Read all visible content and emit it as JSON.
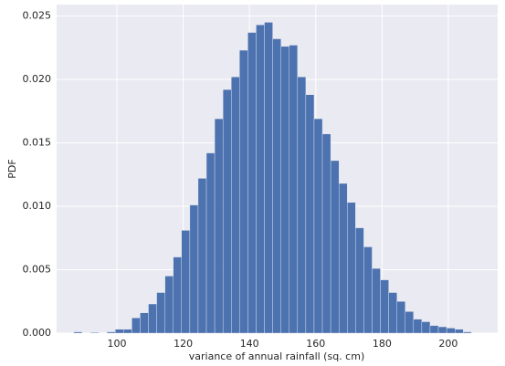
{
  "chart_data": {
    "type": "histogram",
    "xlabel": "variance of annual rainfall (sq. cm)",
    "ylabel": "PDF",
    "bins": [
      87,
      89.5,
      92,
      94.5,
      97,
      99.5,
      102,
      104.5,
      107,
      109.5,
      112,
      114.5,
      117,
      119.5,
      122,
      124.5,
      127,
      129.5,
      132,
      134.5,
      137,
      139.5,
      142,
      144.5,
      147,
      149.5,
      152,
      154.5,
      157,
      159.5,
      162,
      164.5,
      167,
      169.5,
      172,
      174.5,
      177,
      179.5,
      182,
      184.5,
      187,
      189.5,
      192,
      194.5,
      197,
      199.5,
      202,
      204.5,
      207
    ],
    "values": [
      0.0001,
      0,
      5e-05,
      0,
      0.0001,
      0.0003,
      0.0003,
      0.0012,
      0.0016,
      0.0023,
      0.0032,
      0.0045,
      0.006,
      0.0081,
      0.0101,
      0.0122,
      0.0142,
      0.0169,
      0.0192,
      0.0202,
      0.0223,
      0.0237,
      0.0243,
      0.0245,
      0.0232,
      0.0226,
      0.0227,
      0.0202,
      0.0188,
      0.0169,
      0.0157,
      0.0136,
      0.0118,
      0.0103,
      0.0083,
      0.0068,
      0.0051,
      0.0042,
      0.0032,
      0.0025,
      0.0017,
      0.0011,
      0.0009,
      0.0006,
      0.0005,
      0.0004,
      0.0003,
      0.0001
    ],
    "color": "#4c72b0",
    "background": "#eaeaf2",
    "grid": true,
    "xlim": [
      81.8,
      214.9
    ],
    "ylim": [
      0,
      0.0259
    ],
    "xticks": [
      100,
      120,
      140,
      160,
      180,
      200
    ],
    "yticks": [
      {
        "value": 0,
        "label": "0.000"
      },
      {
        "value": 0.005,
        "label": "0.005"
      },
      {
        "value": 0.01,
        "label": "0.010"
      },
      {
        "value": 0.015,
        "label": "0.015"
      },
      {
        "value": 0.02,
        "label": "0.020"
      },
      {
        "value": 0.025,
        "label": "0.025"
      }
    ]
  }
}
